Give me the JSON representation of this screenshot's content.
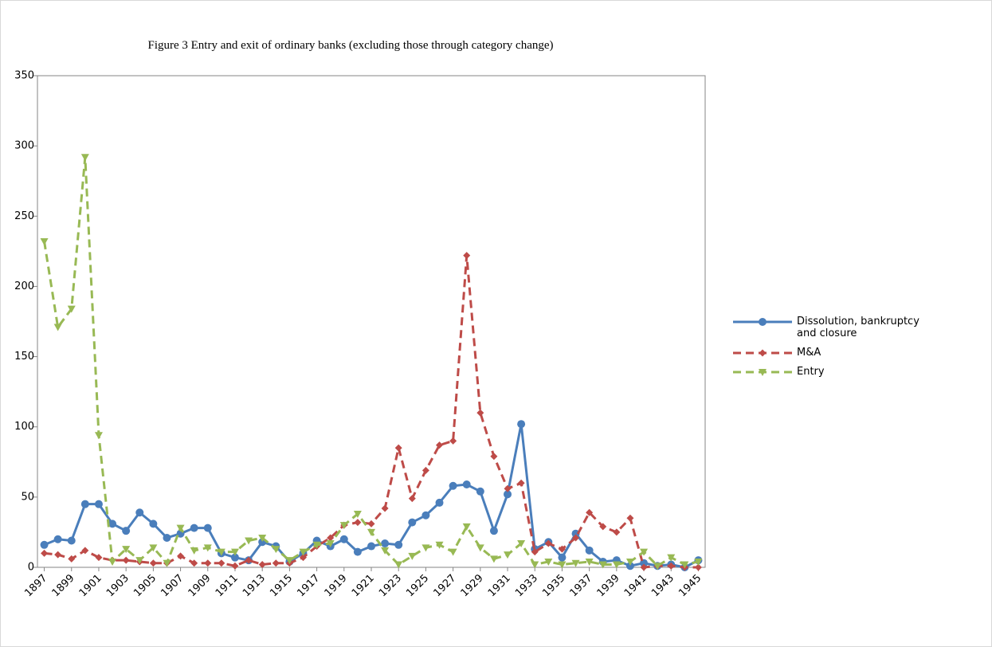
{
  "chart_data": {
    "type": "line",
    "title": "Figure 3 Entry and exit of ordinary banks (excluding those through category change)",
    "x": [
      1897,
      1898,
      1899,
      1900,
      1901,
      1902,
      1903,
      1904,
      1905,
      1906,
      1907,
      1908,
      1909,
      1910,
      1911,
      1912,
      1913,
      1914,
      1915,
      1916,
      1917,
      1918,
      1919,
      1920,
      1921,
      1922,
      1923,
      1924,
      1925,
      1926,
      1927,
      1928,
      1929,
      1930,
      1931,
      1932,
      1933,
      1934,
      1935,
      1936,
      1937,
      1938,
      1939,
      1940,
      1941,
      1942,
      1943,
      1944,
      1945
    ],
    "xlim": [
      1896.5,
      1945.5
    ],
    "xticks": [
      1897,
      1899,
      1901,
      1903,
      1905,
      1907,
      1909,
      1911,
      1913,
      1915,
      1917,
      1919,
      1921,
      1923,
      1925,
      1927,
      1929,
      1931,
      1933,
      1935,
      1937,
      1939,
      1941,
      1943,
      1945
    ],
    "ylim": [
      0,
      350
    ],
    "yticks": [
      0,
      50,
      100,
      150,
      200,
      250,
      300,
      350
    ],
    "grid": false,
    "legend": "right",
    "series": [
      {
        "name": "Dissolution, bankruptcy and closure",
        "color": "#4a7ebb",
        "line_style": "solid",
        "marker": "circle",
        "values": [
          16,
          20,
          19,
          45,
          45,
          31,
          26,
          39,
          31,
          21,
          24,
          28,
          28,
          10,
          7,
          5,
          18,
          15,
          4,
          10,
          19,
          15,
          20,
          11,
          15,
          17,
          16,
          32,
          37,
          46,
          58,
          59,
          54,
          26,
          52,
          102,
          13,
          18,
          7,
          24,
          12,
          4,
          5,
          1,
          3,
          1,
          2,
          0,
          5
        ]
      },
      {
        "name": "M&A",
        "color": "#be4b48",
        "line_style": "dashed",
        "marker": "diamond",
        "values": [
          10,
          9,
          6,
          12,
          7,
          5,
          5,
          4,
          3,
          3,
          8,
          3,
          3,
          3,
          1,
          5,
          2,
          3,
          3,
          7,
          15,
          21,
          30,
          32,
          31,
          42,
          85,
          49,
          69,
          87,
          90,
          222,
          110,
          79,
          56,
          60,
          11,
          17,
          13,
          21,
          39,
          29,
          25,
          35,
          0,
          1,
          1,
          0,
          0
        ]
      },
      {
        "name": "Entry",
        "color": "#98b954",
        "line_style": "dashed",
        "marker": "triangle-down",
        "values": [
          232,
          171,
          184,
          292,
          94,
          4,
          13,
          5,
          14,
          3,
          28,
          12,
          14,
          11,
          11,
          19,
          21,
          13,
          5,
          11,
          16,
          17,
          30,
          38,
          25,
          12,
          2,
          8,
          14,
          16,
          11,
          29,
          14,
          6,
          9,
          17,
          2,
          4,
          2,
          3,
          4,
          2,
          2,
          4,
          11,
          1,
          7,
          2,
          4
        ]
      }
    ]
  }
}
